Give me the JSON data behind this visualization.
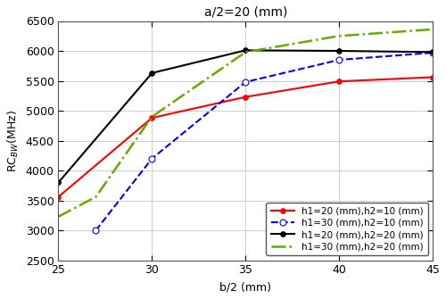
{
  "title": "a/2=20 (mm)",
  "xlabel": "b/2 (mm)",
  "ylabel": "RC$_{BW}$(MHz)",
  "xlim": [
    25,
    45
  ],
  "ylim": [
    2500,
    6500
  ],
  "xticks": [
    25,
    30,
    35,
    40,
    45
  ],
  "yticks": [
    2500,
    3000,
    3500,
    4000,
    4500,
    5000,
    5500,
    6000,
    6500
  ],
  "series": [
    {
      "label": "h1=20 (mm),h2=10 (mm)",
      "x": [
        25,
        30,
        35,
        40,
        45
      ],
      "y": [
        3560,
        4880,
        5230,
        5490,
        5560
      ],
      "color": "#ff0000",
      "linestyle": "-",
      "marker": "o",
      "markerfacecolor": "#ff0000",
      "markeredgecolor": "#ff0000",
      "linewidth": 1.5,
      "markersize": 4
    },
    {
      "label": "h1=30 (mm),h2=10 (mm)",
      "x": [
        27,
        30,
        35,
        40,
        45
      ],
      "y": [
        3000,
        4200,
        5480,
        5850,
        5970
      ],
      "color": "#0000ff",
      "linestyle": "--",
      "marker": "o",
      "markerfacecolor": "#ffffff",
      "markeredgecolor": "#0000ff",
      "linewidth": 1.5,
      "markersize": 5
    },
    {
      "label": "h1=20 (mm),h2=20 (mm)",
      "x": [
        25,
        30,
        35,
        40,
        45
      ],
      "y": [
        3800,
        5630,
        6010,
        6000,
        5980
      ],
      "color": "#000000",
      "linestyle": "-",
      "marker": "o",
      "markerfacecolor": "#000000",
      "markeredgecolor": "#000000",
      "linewidth": 1.5,
      "markersize": 4
    },
    {
      "label": "h1=30 (mm),h2=20 (mm)",
      "x": [
        25,
        27,
        30,
        35,
        40,
        45
      ],
      "y": [
        3230,
        3560,
        4900,
        5980,
        6250,
        6360
      ],
      "color": "#66aa00",
      "linestyle": "--",
      "marker": null,
      "markerfacecolor": null,
      "markeredgecolor": null,
      "linewidth": 1.8,
      "markersize": 4
    }
  ],
  "legend_loc": "lower right",
  "legend_fontsize": 7.5,
  "grid": true,
  "grid_color": "#c8c8c8",
  "background_color": "#ffffff",
  "title_fontsize": 10,
  "label_fontsize": 9,
  "tick_fontsize": 9
}
